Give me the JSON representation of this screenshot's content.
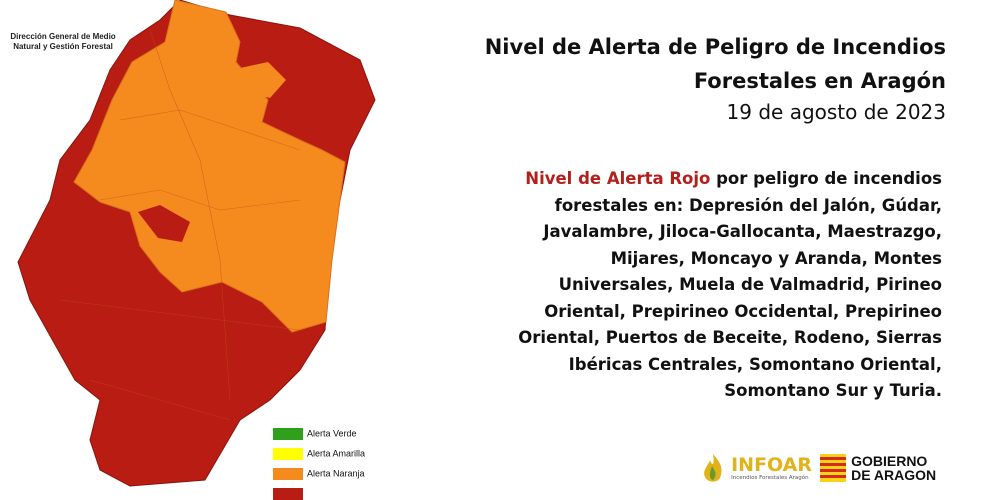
{
  "credit": "Dirección General de Medio Natural y Gestión Forestal",
  "title": [
    "Nivel de Alerta de Peligro de Incendios",
    "Forestales en Aragón"
  ],
  "date": "19 de agosto de 2023",
  "alert_text": {
    "highlight": "Nivel de Alerta Rojo",
    "lines": [
      "por peligro de incendios",
      "forestales en:  Depresión del Jalón, Gúdar,",
      "Javalambre, Jiloca-Gallocanta, Maestrazgo,",
      "Mijares, Moncayo y Aranda, Montes",
      "Universales, Muela de Valmadrid, Pirineo",
      "Oriental, Prepirineo Occidental, Prepirineo",
      "Oriental, Puertos de Beceite, Rodeno, Sierras",
      "Ibéricas Centrales, Somontano Oriental,",
      "Somontano Sur y Turia."
    ]
  },
  "legend": [
    {
      "label": "Alerta Verde",
      "color": "#2ea01a"
    },
    {
      "label": "Alerta Amarilla",
      "color": "#ffff00"
    },
    {
      "label": "Alerta Naranja",
      "color": "#f58a1f"
    },
    {
      "label": null,
      "color": "#b81c12"
    }
  ],
  "logos": {
    "infoar": {
      "name": "INFOAR",
      "tagline": "Incendios Forestales Aragón"
    },
    "gobierno": [
      "GOBIERNO",
      "DE ARAGON"
    ]
  }
}
